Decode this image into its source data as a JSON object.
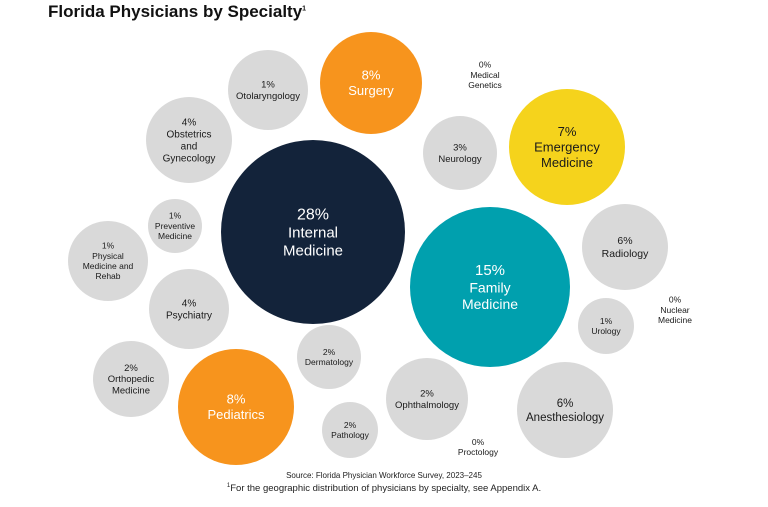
{
  "title": "Florida Physicians by Specialty",
  "title_footnote_mark": "1",
  "colors": {
    "navy": "#13233a",
    "teal": "#00a0ae",
    "orange": "#f7941d",
    "yellow": "#f5d31c",
    "gray": "#d9d9d9",
    "dark_text": "#1a1a1a",
    "light_text": "#ffffff"
  },
  "chart_data": {
    "type": "bubble",
    "title": "Florida Physicians by Specialty",
    "unit": "percent of physicians",
    "bubbles": [
      {
        "name": "Internal Medicine",
        "value": 28,
        "label": "28%",
        "lines": [
          "Internal",
          "Medicine"
        ],
        "color": "navy"
      },
      {
        "name": "Family Medicine",
        "value": 15,
        "label": "15%",
        "lines": [
          "Family",
          "Medicine"
        ],
        "color": "teal"
      },
      {
        "name": "Surgery",
        "value": 8,
        "label": "8%",
        "lines": [
          "Surgery"
        ],
        "color": "orange"
      },
      {
        "name": "Pediatrics",
        "value": 8,
        "label": "8%",
        "lines": [
          "Pediatrics"
        ],
        "color": "orange"
      },
      {
        "name": "Emergency Medicine",
        "value": 7,
        "label": "7%",
        "lines": [
          "Emergency",
          "Medicine"
        ],
        "color": "yellow"
      },
      {
        "name": "Radiology",
        "value": 6,
        "label": "6%",
        "lines": [
          "Radiology"
        ],
        "color": "gray"
      },
      {
        "name": "Anesthesiology",
        "value": 6,
        "label": "6%",
        "lines": [
          "Anesthesiology"
        ],
        "color": "gray"
      },
      {
        "name": "Obstetrics and Gynecology",
        "value": 4,
        "label": "4%",
        "lines": [
          "Obstetrics",
          "and",
          "Gynecology"
        ],
        "color": "gray"
      },
      {
        "name": "Psychiatry",
        "value": 4,
        "label": "4%",
        "lines": [
          "Psychiatry"
        ],
        "color": "gray"
      },
      {
        "name": "Neurology",
        "value": 3,
        "label": "3%",
        "lines": [
          "Neurology"
        ],
        "color": "gray"
      },
      {
        "name": "Orthopedic Medicine",
        "value": 2,
        "label": "2%",
        "lines": [
          "Orthopedic",
          "Medicine"
        ],
        "color": "gray"
      },
      {
        "name": "Dermatology",
        "value": 2,
        "label": "2%",
        "lines": [
          "Dermatology"
        ],
        "color": "gray"
      },
      {
        "name": "Ophthalmology",
        "value": 2,
        "label": "2%",
        "lines": [
          "Ophthalmology"
        ],
        "color": "gray"
      },
      {
        "name": "Pathology",
        "value": 2,
        "label": "2%",
        "lines": [
          "Pathology"
        ],
        "color": "gray"
      },
      {
        "name": "Otolaryngology",
        "value": 1,
        "label": "1%",
        "lines": [
          "Otolaryngology"
        ],
        "color": "gray"
      },
      {
        "name": "Preventive Medicine",
        "value": 1,
        "label": "1%",
        "lines": [
          "Preventive",
          "Medicine"
        ],
        "color": "gray"
      },
      {
        "name": "Physical Medicine and Rehab",
        "value": 1,
        "label": "1%",
        "lines": [
          "Physical",
          "Medicine and",
          "Rehab"
        ],
        "color": "gray"
      },
      {
        "name": "Urology",
        "value": 1,
        "label": "1%",
        "lines": [
          "Urology"
        ],
        "color": "gray"
      },
      {
        "name": "Medical Genetics",
        "value": 0,
        "label": "0%",
        "lines": [
          "Medical",
          "Genetics"
        ],
        "color": "none"
      },
      {
        "name": "Nuclear Medicine",
        "value": 0,
        "label": "0%",
        "lines": [
          "Nuclear",
          "Medicine"
        ],
        "color": "none"
      },
      {
        "name": "Proctology",
        "value": 0,
        "label": "0%",
        "lines": [
          "Proctology"
        ],
        "color": "none"
      }
    ]
  },
  "source": "Source: Florida Physician Workforce Survey, 2023–245",
  "footnote_mark": "1",
  "footnote": "For the geographic distribution of physicians by specialty, see Appendix A."
}
